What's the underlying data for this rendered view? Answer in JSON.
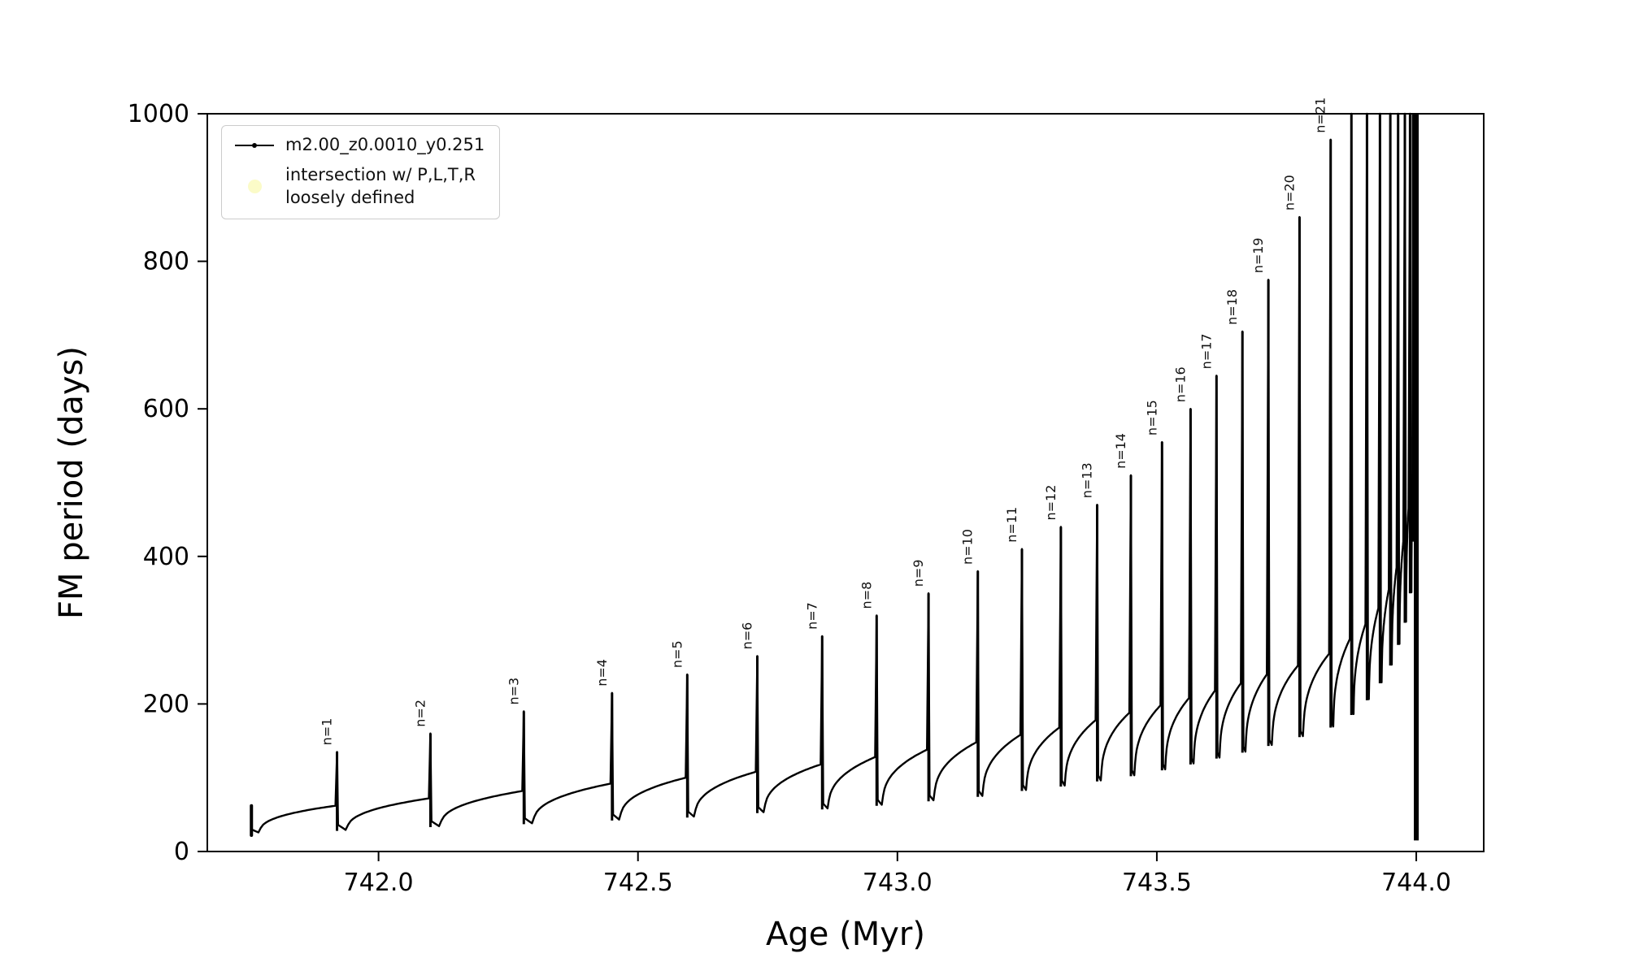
{
  "figure": {
    "xlabel": "Age (Myr)",
    "ylabel": "FM period (days)",
    "background": "#ffffff"
  },
  "legend": {
    "entries": [
      {
        "label": "m2.00_z0.0010_y0.251",
        "marker": "line-dot",
        "color": "#000000"
      },
      {
        "label": "intersection w/ P,L,T,R\nloosely defined",
        "marker": "circle",
        "color": "#fbfbc8"
      }
    ]
  },
  "chart_data": {
    "type": "line",
    "title": "",
    "xlabel": "Age (Myr)",
    "ylabel": "FM period (days)",
    "xlim": [
      741.67,
      744.13
    ],
    "ylim": [
      0,
      1000
    ],
    "x_ticks": [
      742.0,
      742.5,
      743.0,
      743.5,
      744.0
    ],
    "x_tick_labels": [
      "742.0",
      "742.5",
      "743.0",
      "743.5",
      "744.0"
    ],
    "y_ticks": [
      0,
      200,
      400,
      600,
      800,
      1000
    ],
    "y_tick_labels": [
      "0",
      "200",
      "400",
      "600",
      "800",
      "1000"
    ],
    "grid": false,
    "legend_position": "upper left",
    "line_color": "#000000",
    "series_label": "m2.00_z0.0010_y0.251",
    "annotation_prefix": "n=",
    "start": {
      "x": 741.755,
      "cluster_y": [
        22,
        62
      ],
      "dip": 25,
      "high": 62
    },
    "spikes": [
      {
        "n": 1,
        "x": 741.92,
        "peak": 135,
        "dip": 28,
        "next_high": 72
      },
      {
        "n": 2,
        "x": 742.1,
        "peak": 160,
        "dip": 33,
        "next_high": 82
      },
      {
        "n": 3,
        "x": 742.28,
        "peak": 190,
        "dip": 37,
        "next_high": 92
      },
      {
        "n": 4,
        "x": 742.45,
        "peak": 215,
        "dip": 42,
        "next_high": 100
      },
      {
        "n": 5,
        "x": 742.595,
        "peak": 240,
        "dip": 46,
        "next_high": 108
      },
      {
        "n": 6,
        "x": 742.73,
        "peak": 265,
        "dip": 52,
        "next_high": 118
      },
      {
        "n": 7,
        "x": 742.855,
        "peak": 292,
        "dip": 57,
        "next_high": 128
      },
      {
        "n": 8,
        "x": 742.96,
        "peak": 320,
        "dip": 62,
        "next_high": 138
      },
      {
        "n": 9,
        "x": 743.06,
        "peak": 350,
        "dip": 68,
        "next_high": 148
      },
      {
        "n": 10,
        "x": 743.155,
        "peak": 380,
        "dip": 74,
        "next_high": 158
      },
      {
        "n": 11,
        "x": 743.24,
        "peak": 410,
        "dip": 82,
        "next_high": 168
      },
      {
        "n": 12,
        "x": 743.315,
        "peak": 440,
        "dip": 88,
        "next_high": 178
      },
      {
        "n": 13,
        "x": 743.385,
        "peak": 470,
        "dip": 95,
        "next_high": 188
      },
      {
        "n": 14,
        "x": 743.45,
        "peak": 510,
        "dip": 102,
        "next_high": 198
      },
      {
        "n": 15,
        "x": 743.51,
        "peak": 555,
        "dip": 110,
        "next_high": 208
      },
      {
        "n": 16,
        "x": 743.565,
        "peak": 600,
        "dip": 118,
        "next_high": 218
      },
      {
        "n": 17,
        "x": 743.615,
        "peak": 645,
        "dip": 126,
        "next_high": 228
      },
      {
        "n": 18,
        "x": 743.665,
        "peak": 705,
        "dip": 134,
        "next_high": 240
      },
      {
        "n": 19,
        "x": 743.715,
        "peak": 775,
        "dip": 143,
        "next_high": 252
      },
      {
        "n": 20,
        "x": 743.775,
        "peak": 860,
        "dip": 155,
        "next_high": 268
      },
      {
        "n": 21,
        "x": 743.835,
        "peak": 965,
        "dip": 168,
        "next_high": 288
      },
      {
        "n": null,
        "x": 743.875,
        "peak": 1000,
        "dip": 185,
        "next_high": 308
      },
      {
        "n": null,
        "x": 743.905,
        "peak": 1000,
        "dip": 205,
        "next_high": 330
      },
      {
        "n": null,
        "x": 743.93,
        "peak": 1000,
        "dip": 228,
        "next_high": 355
      },
      {
        "n": null,
        "x": 743.95,
        "peak": 1000,
        "dip": 252,
        "next_high": 385
      },
      {
        "n": null,
        "x": 743.965,
        "peak": 1000,
        "dip": 280,
        "next_high": 420
      },
      {
        "n": null,
        "x": 743.978,
        "peak": 1000,
        "dip": 310,
        "next_high": 465
      },
      {
        "n": null,
        "x": 743.988,
        "peak": 1000,
        "dip": 350,
        "next_high": 580
      }
    ],
    "terminal": {
      "x": 744.0,
      "y_min": 15,
      "y_max": 1000,
      "stray_dots_y": [
        30,
        65,
        460
      ]
    }
  }
}
